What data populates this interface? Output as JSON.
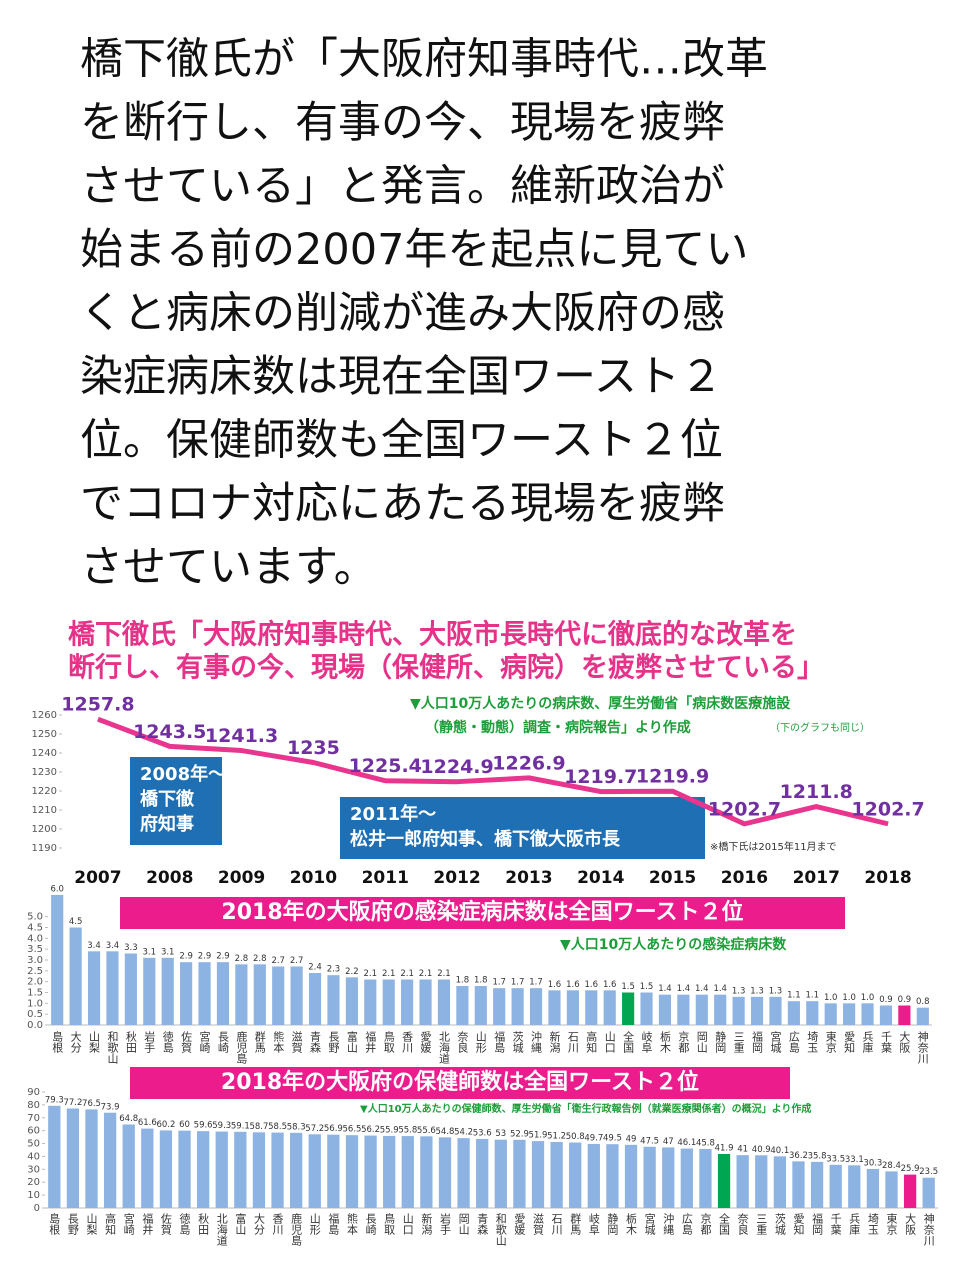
{
  "header": {
    "lines": [
      "橋下徹氏が「大阪府知事時代…改革",
      "を断行し、有事の今、現場を疲弊",
      "させている」と発言。維新政治が",
      "始まる前の2007年を起点に見てい",
      "くと病床の削減が進み大阪府の感",
      "染症病床数は現在全国ワースト２",
      "位。保健師数も全国ワースト２位",
      "でコロナ対応にあたる現場を疲弊",
      "させています。"
    ]
  },
  "chart_data": [
    {
      "type": "line",
      "title": [
        "橋下徹氏「大阪府知事時代、大阪市長時代に徹底的な改革を",
        "断行し、有事の今、現場（保健所、病院）を疲弊させている」"
      ],
      "source": [
        "▼人口10万人あたりの病床数、厚生労働省「病床数医療施設",
        "（静態・動態）調査・病院報告」より作成"
      ],
      "source_note": "（下のグラフも同じ）",
      "categories": [
        "2007",
        "2008",
        "2009",
        "2010",
        "2011",
        "2012",
        "2013",
        "2014",
        "2015",
        "2016",
        "2017",
        "2018"
      ],
      "values": [
        1257.8,
        1243.5,
        1241.3,
        1235,
        1225.4,
        1224.9,
        1226.9,
        1219.7,
        1219.9,
        1202.7,
        1211.8,
        1202.7
      ],
      "color": "#e8368f",
      "label_color": "#7030a0",
      "ylim": [
        1190,
        1260
      ],
      "yticks": [
        1190,
        1200,
        1210,
        1220,
        1230,
        1240,
        1250,
        1260
      ],
      "annotations": [
        {
          "lines": [
            "2008年～",
            "橋下徹",
            "府知事"
          ],
          "color": "#1f6fb5"
        },
        {
          "lines": [
            "2011年～",
            "松井一郎府知事、橋下徹大阪市長"
          ],
          "color": "#1f6fb5"
        }
      ],
      "note": "※橋下氏は2015年11月まで"
    },
    {
      "type": "bar",
      "title": "2018年の大阪府の感染症病床数は全国ワースト２位",
      "subtitle": "▼人口10万人あたりの感染症病床数",
      "categories": [
        "島根",
        "大分",
        "山梨",
        "和歌山",
        "秋田",
        "岩手",
        "徳島",
        "佐賀",
        "宮崎",
        "長崎",
        "鹿児島",
        "群馬",
        "熊本",
        "滋賀",
        "青森",
        "長野",
        "富山",
        "福井",
        "鳥取",
        "香川",
        "愛媛",
        "北海道",
        "奈良",
        "山形",
        "福島",
        "茨城",
        "沖縄",
        "新潟",
        "石川",
        "高知",
        "山口",
        "全国",
        "岐阜",
        "栃木",
        "京都",
        "岡山",
        "静岡",
        "三重",
        "福岡",
        "宮城",
        "広島",
        "埼玉",
        "東京",
        "愛知",
        "兵庫",
        "千葉",
        "大阪",
        "神奈川"
      ],
      "values": [
        6.0,
        4.5,
        3.4,
        3.4,
        3.3,
        3.1,
        3.1,
        2.9,
        2.9,
        2.9,
        2.8,
        2.8,
        2.7,
        2.7,
        2.4,
        2.3,
        2.2,
        2.1,
        2.1,
        2.1,
        2.1,
        2.1,
        1.8,
        1.8,
        1.7,
        1.7,
        1.7,
        1.6,
        1.6,
        1.6,
        1.6,
        1.5,
        1.5,
        1.4,
        1.4,
        1.4,
        1.4,
        1.3,
        1.3,
        1.3,
        1.1,
        1.1,
        1.0,
        1.0,
        1.0,
        0.9,
        0.9,
        0.8
      ],
      "value_labels": [
        "6.0",
        "4.5",
        "3.4",
        "3.4",
        "3.3",
        "3.1",
        "3.1",
        "2.9",
        "2.9",
        "2.9",
        "2.8",
        "2.8",
        "2.7",
        "2.7",
        "2.4",
        "2.3",
        "2.2",
        "2.1",
        "2.1",
        "2.1",
        "2.1",
        "2.1",
        "1.8",
        "1.8",
        "1.7",
        "1.7",
        "1.7",
        "1.6",
        "1.6",
        "1.6",
        "1.6",
        "1.5",
        "1.5",
        "1.4",
        "1.4",
        "1.4",
        "1.4",
        "1.3",
        "1.3",
        "1.3",
        "1.1",
        "1.1",
        "1.0",
        "1.0",
        "1.0",
        "0.9",
        "0.9",
        "0.8"
      ],
      "colors": [
        "#8db3e2",
        "#8db3e2",
        "#8db3e2",
        "#8db3e2",
        "#8db3e2",
        "#8db3e2",
        "#8db3e2",
        "#8db3e2",
        "#8db3e2",
        "#8db3e2",
        "#8db3e2",
        "#8db3e2",
        "#8db3e2",
        "#8db3e2",
        "#8db3e2",
        "#8db3e2",
        "#8db3e2",
        "#8db3e2",
        "#8db3e2",
        "#8db3e2",
        "#8db3e2",
        "#8db3e2",
        "#8db3e2",
        "#8db3e2",
        "#8db3e2",
        "#8db3e2",
        "#8db3e2",
        "#8db3e2",
        "#8db3e2",
        "#8db3e2",
        "#8db3e2",
        "#00a651",
        "#8db3e2",
        "#8db3e2",
        "#8db3e2",
        "#8db3e2",
        "#8db3e2",
        "#8db3e2",
        "#8db3e2",
        "#8db3e2",
        "#8db3e2",
        "#8db3e2",
        "#8db3e2",
        "#8db3e2",
        "#8db3e2",
        "#8db3e2",
        "#ec1c8c",
        "#8db3e2"
      ],
      "title_color": "#ec1c8c",
      "ylim": [
        0,
        6
      ],
      "yticks": [
        {
          "value": 0,
          "label": "0.0"
        },
        0.5,
        {
          "value": 1,
          "label": "1.0"
        },
        1.5,
        {
          "value": 2,
          "label": "2.0"
        },
        2.5,
        {
          "value": 3,
          "label": "3.0"
        },
        3.5,
        {
          "value": 4,
          "label": "4.0"
        },
        4.5,
        {
          "value": 5,
          "label": "5.0"
        }
      ]
    },
    {
      "type": "bar",
      "title": "2018年の大阪府の保健師数は全国ワースト２位",
      "subtitle": "▼人口10万人あたりの保健師数、厚生労働省「衛生行政報告例（就業医療関係者）の概況」より作成",
      "categories": [
        "島根",
        "長野",
        "山梨",
        "高知",
        "宮崎",
        "福井",
        "佐賀",
        "徳島",
        "秋田",
        "北海道",
        "富山",
        "大分",
        "香川",
        "鹿児島",
        "山形",
        "福島",
        "熊本",
        "長崎",
        "鳥取",
        "山口",
        "新潟",
        "岩手",
        "岡山",
        "青森",
        "和歌山",
        "愛媛",
        "滋賀",
        "石川",
        "群馬",
        "岐阜",
        "静岡",
        "栃木",
        "宮城",
        "沖縄",
        "広島",
        "京都",
        "全国",
        "奈良",
        "三重",
        "茨城",
        "愛知",
        "福岡",
        "千葉",
        "兵庫",
        "埼玉",
        "東京",
        "大阪",
        "神奈川"
      ],
      "values": [
        79.3,
        77.2,
        76.5,
        73.9,
        64.8,
        61.6,
        60.2,
        60,
        59.6,
        59.3,
        59.1,
        58.7,
        58.5,
        58.3,
        57.2,
        56.9,
        56.5,
        56.2,
        55.9,
        55.8,
        55.6,
        54.8,
        54.2,
        53.6,
        53,
        52.9,
        51.9,
        51.2,
        50.8,
        49.7,
        49.5,
        49,
        47.5,
        47,
        46.1,
        45.8,
        41.9,
        41,
        40.9,
        40.1,
        36.2,
        35.8,
        33.5,
        33.1,
        30.3,
        28.4,
        25.9,
        23.5
      ],
      "colors": [
        "#8db3e2",
        "#8db3e2",
        "#8db3e2",
        "#8db3e2",
        "#8db3e2",
        "#8db3e2",
        "#8db3e2",
        "#8db3e2",
        "#8db3e2",
        "#8db3e2",
        "#8db3e2",
        "#8db3e2",
        "#8db3e2",
        "#8db3e2",
        "#8db3e2",
        "#8db3e2",
        "#8db3e2",
        "#8db3e2",
        "#8db3e2",
        "#8db3e2",
        "#8db3e2",
        "#8db3e2",
        "#8db3e2",
        "#8db3e2",
        "#8db3e2",
        "#8db3e2",
        "#8db3e2",
        "#8db3e2",
        "#8db3e2",
        "#8db3e2",
        "#8db3e2",
        "#8db3e2",
        "#8db3e2",
        "#8db3e2",
        "#8db3e2",
        "#8db3e2",
        "#00a651",
        "#8db3e2",
        "#8db3e2",
        "#8db3e2",
        "#8db3e2",
        "#8db3e2",
        "#8db3e2",
        "#8db3e2",
        "#8db3e2",
        "#8db3e2",
        "#ec1c8c",
        "#8db3e2"
      ],
      "title_color": "#ec1c8c",
      "ylim": [
        0,
        90
      ],
      "yticks": [
        0,
        10,
        20,
        30,
        40,
        50,
        60,
        70,
        80,
        90
      ]
    }
  ]
}
